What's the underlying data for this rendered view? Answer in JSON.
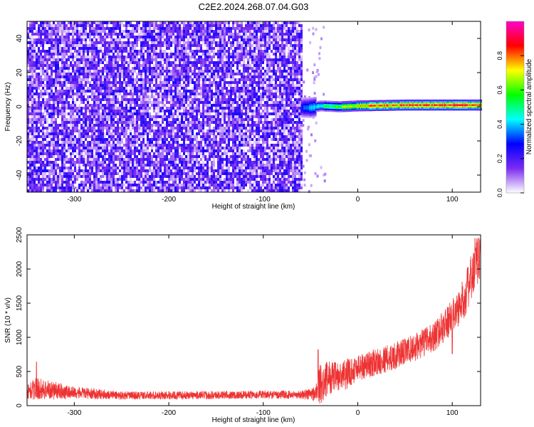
{
  "title": "C2E2.2024.268.07.04.G03",
  "chart_data": [
    {
      "type": "heatmap",
      "xlabel": "Height of straight line (km)",
      "ylabel": "Frequency (Hz)",
      "xlim": [
        -350,
        130
      ],
      "ylim": [
        -50,
        50
      ],
      "xticks": [
        -300,
        -200,
        -100,
        0,
        100
      ],
      "yticks": [
        -40,
        -20,
        0,
        20,
        40
      ],
      "colorbar": {
        "label": "Normalized spectral amplitude",
        "range": [
          0,
          1
        ],
        "ticks": [
          "0.0",
          "0.2",
          "0.4",
          "0.6",
          "0.8"
        ],
        "colors": [
          "#ffffff",
          "#7b2cf0",
          "#0000ff",
          "#00ffff",
          "#00ff00",
          "#ffff00",
          "#ff0000",
          "#ff00cc"
        ]
      },
      "noise_region_x": [
        -350,
        -60
      ],
      "noise_level": 0.25,
      "signal_track": {
        "x_start": -60,
        "x_end": 130,
        "freq_hz": [
          [
            -60,
            0
          ],
          [
            -50,
            0
          ],
          [
            -40,
            1
          ],
          [
            -20,
            0.5
          ],
          [
            0,
            1
          ],
          [
            50,
            1.5
          ],
          [
            100,
            1.5
          ],
          [
            130,
            1.5
          ]
        ],
        "amplitude": [
          [
            -60,
            0.3
          ],
          [
            -40,
            0.5
          ],
          [
            -10,
            0.7
          ],
          [
            20,
            0.85
          ],
          [
            60,
            0.85
          ],
          [
            90,
            0.9
          ],
          [
            130,
            0.85
          ]
        ]
      }
    },
    {
      "type": "line",
      "xlabel": "Height of straight line (km)",
      "ylabel": "SNR (10 * v/v)",
      "xlim": [
        -350,
        130
      ],
      "ylim": [
        0,
        2500
      ],
      "xticks": [
        -300,
        -200,
        -100,
        0,
        100
      ],
      "yticks": [
        0,
        500,
        1000,
        1500,
        2000,
        2500
      ],
      "color": "#ee3333",
      "envelope": {
        "x": [
          -350,
          -340,
          -300,
          -250,
          -200,
          -150,
          -100,
          -60,
          -45,
          -40,
          -30,
          -20,
          -10,
          0,
          20,
          40,
          60,
          80,
          100,
          110,
          120,
          130
        ],
        "center": [
          200,
          250,
          190,
          150,
          150,
          155,
          160,
          160,
          175,
          300,
          420,
          400,
          480,
          560,
          640,
          730,
          850,
          1000,
          1300,
          1500,
          1850,
          2250
        ],
        "spread": [
          110,
          170,
          90,
          60,
          60,
          60,
          60,
          60,
          120,
          300,
          250,
          230,
          220,
          200,
          200,
          200,
          200,
          220,
          250,
          300,
          350,
          380
        ]
      },
      "spikes": [
        [
          -42,
          820
        ],
        [
          -340,
          640
        ],
        [
          100,
          760
        ],
        [
          124,
          2450
        ]
      ]
    }
  ]
}
